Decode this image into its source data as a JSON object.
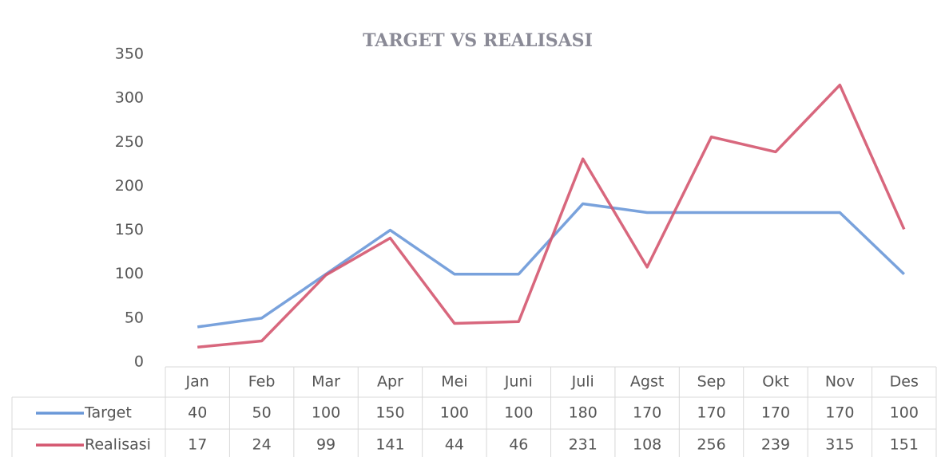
{
  "chart_data": {
    "type": "line",
    "title": "TARGET VS REALISASI",
    "categories": [
      "Jan",
      "Feb",
      "Mar",
      "Apr",
      "Mei",
      "Juni",
      "Juli",
      "Agst",
      "Sep",
      "Okt",
      "Nov",
      "Des"
    ],
    "series": [
      {
        "name": "Target",
        "color": "#6a98d8",
        "values": [
          40,
          50,
          100,
          150,
          100,
          100,
          180,
          170,
          170,
          170,
          170,
          100
        ]
      },
      {
        "name": "Realisasi",
        "color": "#d4566f",
        "values": [
          17,
          24,
          99,
          141,
          44,
          46,
          231,
          108,
          256,
          239,
          315,
          151
        ]
      }
    ],
    "ylim": [
      0,
      350
    ],
    "yticks": [
      0,
      50,
      100,
      150,
      200,
      250,
      300,
      350
    ],
    "grid": false
  }
}
